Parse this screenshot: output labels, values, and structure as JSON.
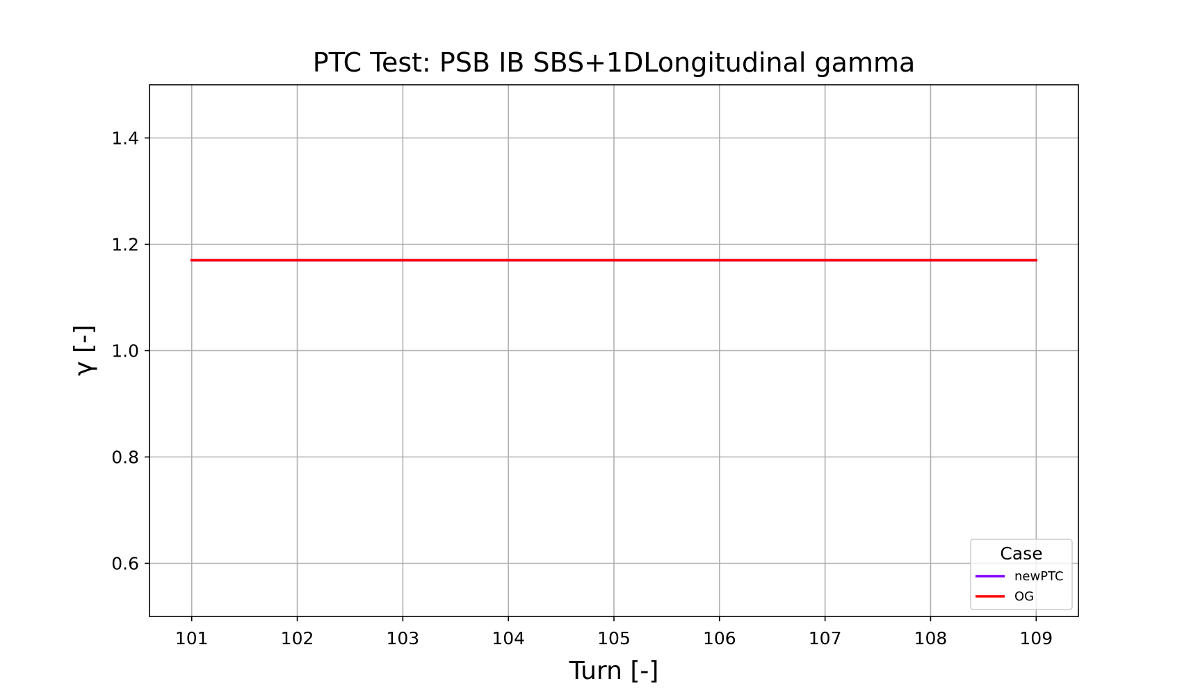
{
  "chart_data": {
    "type": "line",
    "title": "PTC Test: PSB IB SBS+1DLongitudinal gamma",
    "xlabel": "Turn [-]",
    "ylabel": "γ [-]",
    "xlim": [
      100.6,
      109.4
    ],
    "ylim": [
      0.5,
      1.5
    ],
    "xticks": [
      101,
      102,
      103,
      104,
      105,
      106,
      107,
      108,
      109
    ],
    "yticks": [
      0.6,
      0.8,
      1.0,
      1.2,
      1.4
    ],
    "xtick_labels": [
      "101",
      "102",
      "103",
      "104",
      "105",
      "106",
      "107",
      "108",
      "109"
    ],
    "ytick_labels": [
      "0.6",
      "0.8",
      "1.0",
      "1.2",
      "1.4"
    ],
    "grid": true,
    "legend": {
      "title": "Case",
      "placement": "lower-right"
    },
    "series": [
      {
        "name": "newPTC",
        "color": "#8000ff",
        "x": [
          101,
          102,
          103,
          104,
          105,
          106,
          107,
          108,
          109
        ],
        "y": [
          1.17,
          1.17,
          1.17,
          1.17,
          1.17,
          1.17,
          1.17,
          1.17,
          1.17
        ]
      },
      {
        "name": "OG",
        "color": "#ff0000",
        "x": [
          101,
          102,
          103,
          104,
          105,
          106,
          107,
          108,
          109
        ],
        "y": [
          1.17,
          1.17,
          1.17,
          1.17,
          1.17,
          1.17,
          1.17,
          1.17,
          1.17
        ]
      }
    ]
  }
}
